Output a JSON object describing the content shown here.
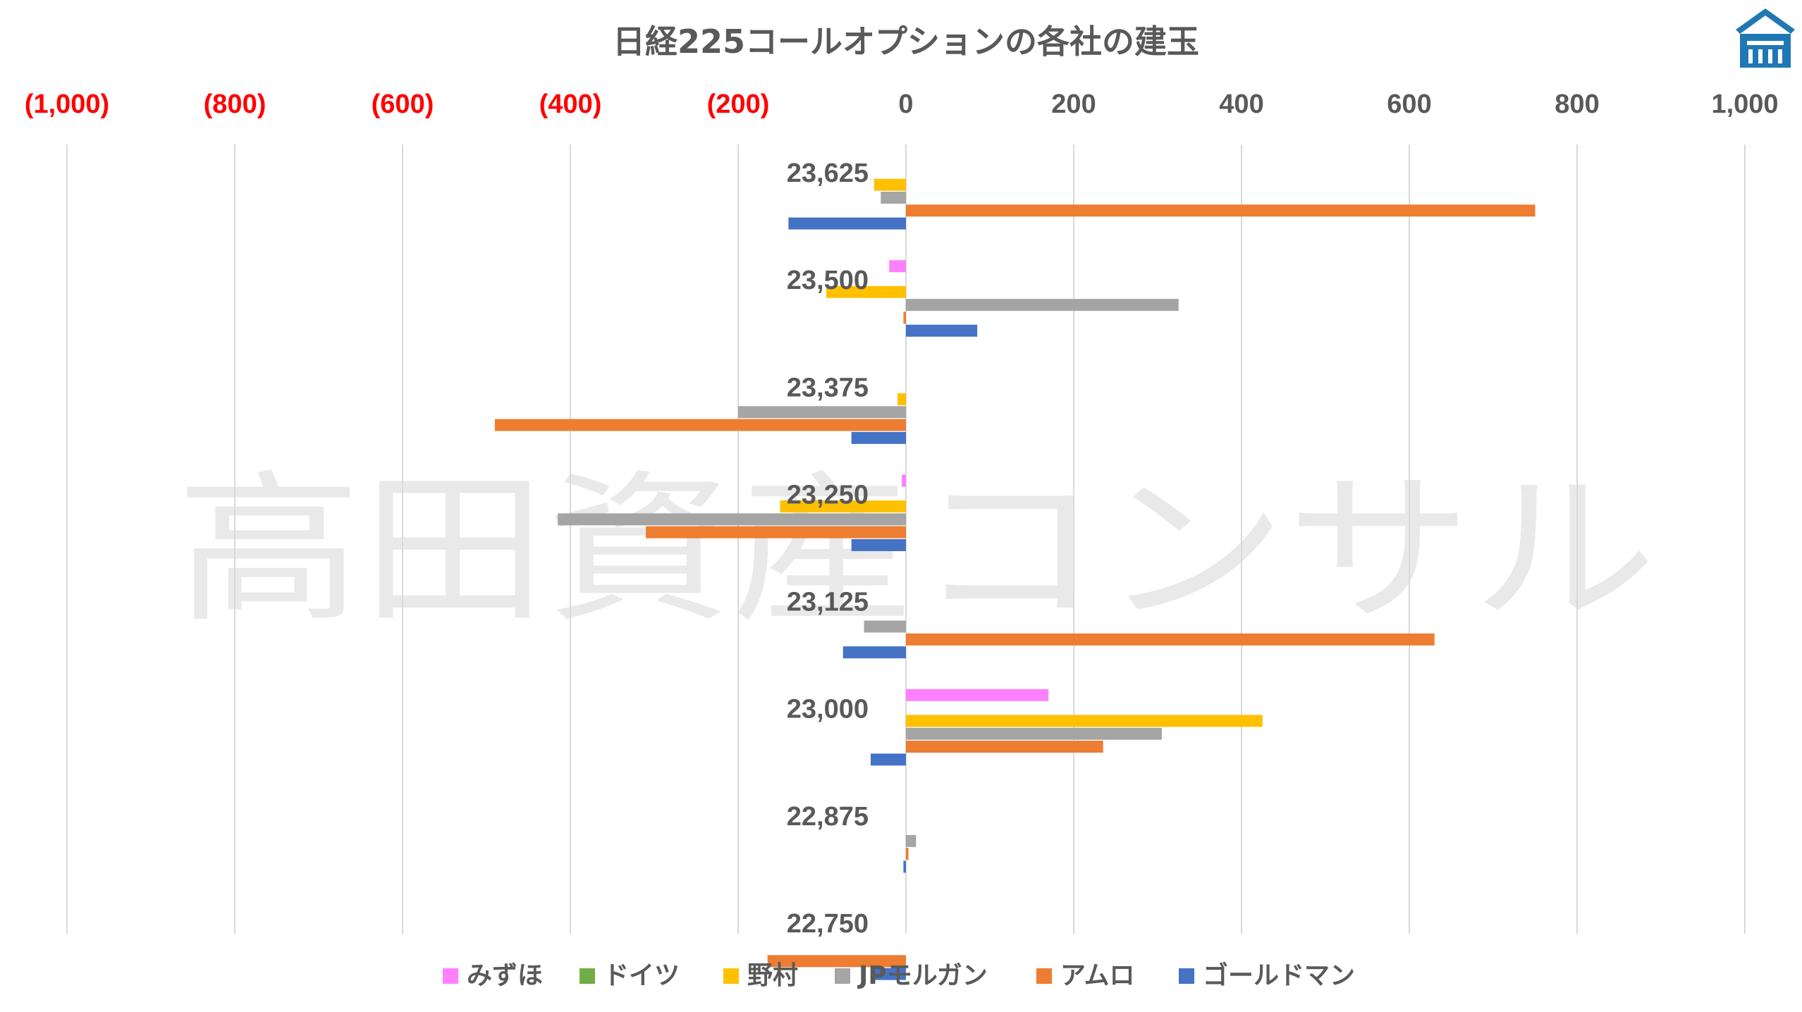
{
  "chart_data": {
    "type": "bar",
    "orientation": "horizontal",
    "title": "日経225コールオプションの各社の建玉",
    "watermark": "高田資産コンサル",
    "xlim": [
      -1000,
      1000
    ],
    "x_ticks": [
      -1000,
      -800,
      -600,
      -400,
      -200,
      0,
      200,
      400,
      600,
      800,
      1000
    ],
    "x_tick_labels": [
      "(1,000)",
      "(800)",
      "(600)",
      "(400)",
      "(200)",
      "0",
      "200",
      "400",
      "600",
      "800",
      "1,000"
    ],
    "axis_position": "top",
    "grid": true,
    "legend_position": "bottom",
    "categories": [
      "23,625",
      "23,500",
      "23,375",
      "23,250",
      "23,125",
      "23,000",
      "22,875",
      "22,750"
    ],
    "series": [
      {
        "name": "みずほ",
        "color": "#ff80ff",
        "values": [
          0,
          -20,
          0,
          -5,
          0,
          170,
          0,
          0
        ]
      },
      {
        "name": "ドイツ",
        "color": "#70ad47",
        "values": [
          0,
          0,
          0,
          0,
          0,
          0,
          0,
          0
        ]
      },
      {
        "name": "野村",
        "color": "#ffc000",
        "values": [
          -38,
          -95,
          -10,
          -150,
          0,
          425,
          0,
          0
        ]
      },
      {
        "name": "JPモルガン",
        "color": "#a5a5a5",
        "values": [
          -30,
          325,
          -200,
          -415,
          -50,
          305,
          12,
          0
        ]
      },
      {
        "name": "アムロ",
        "color": "#ed7d31",
        "values": [
          750,
          -3,
          -490,
          -310,
          630,
          235,
          3,
          -165
        ]
      },
      {
        "name": "ゴールドマン",
        "color": "#4472c4",
        "values": [
          -140,
          85,
          -65,
          -65,
          -75,
          -42,
          -3,
          -40
        ]
      }
    ]
  },
  "colors": {
    "negative_tick": "#ff0000",
    "positive_tick": "#595959",
    "grid": "#d9d9d9",
    "logo": "#1f78b4"
  },
  "logo_icon": "house-logo-icon"
}
